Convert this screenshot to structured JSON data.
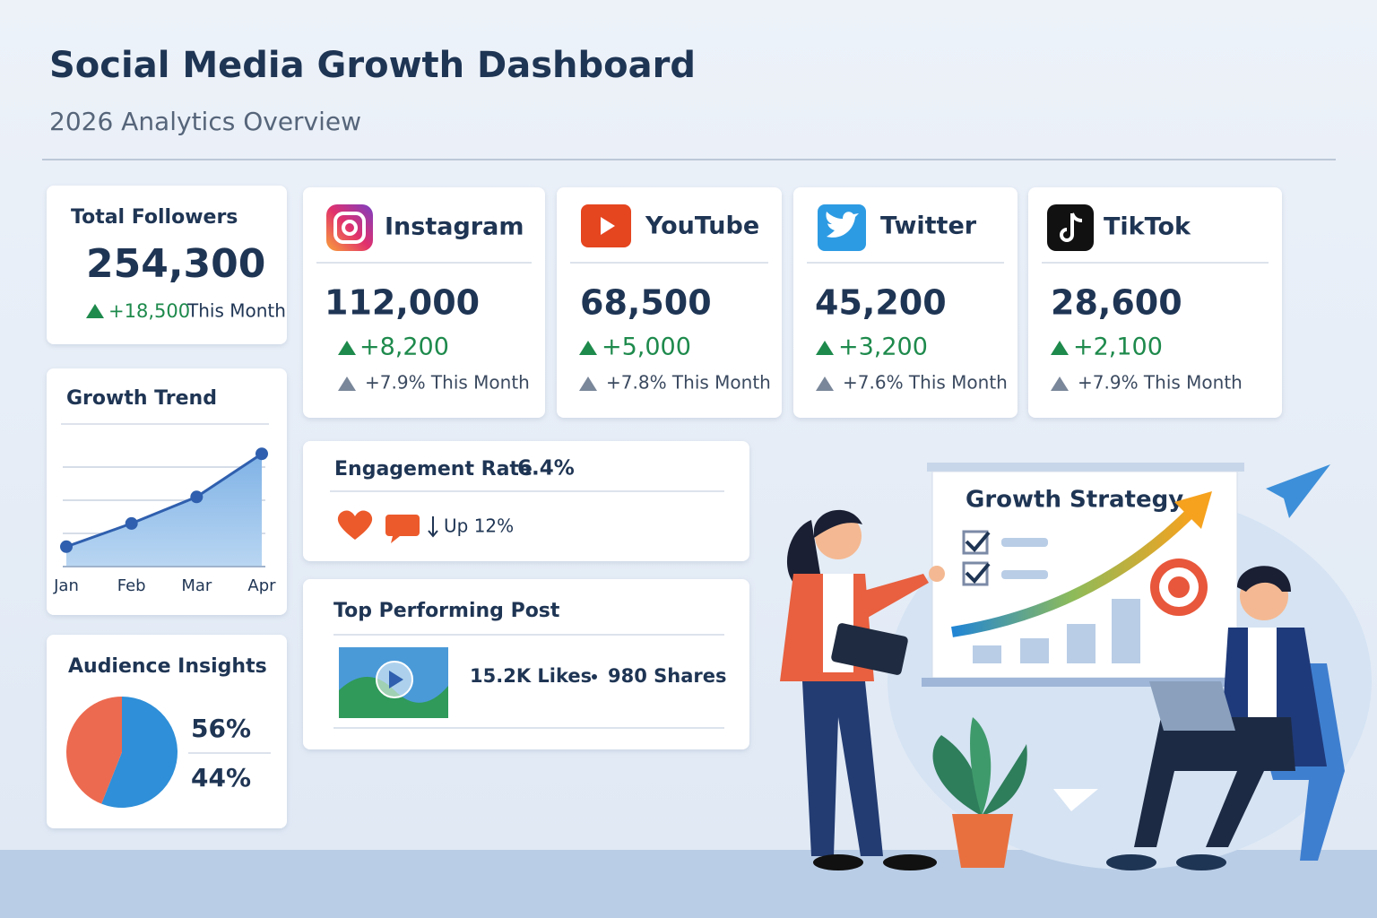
{
  "header": {
    "title": "Social Media Growth Dashboard",
    "subtitle": "2026 Analytics Overview"
  },
  "total_followers": {
    "label": "Total Followers",
    "value": "254,300",
    "change": "+18,500",
    "period": "This Month"
  },
  "platforms": [
    {
      "name": "Instagram",
      "followers": "112,000",
      "change": "+8,200",
      "percent": "+7.9% This Month"
    },
    {
      "name": "YouTube",
      "followers": "68,500",
      "change": "+5,000",
      "percent": "+7.8% This Month"
    },
    {
      "name": "Twitter",
      "followers": "45,200",
      "change": "+3,200",
      "percent": "+7.6% This Month"
    },
    {
      "name": "TikTok",
      "followers": "28,600",
      "change": "+2,100",
      "percent": "+7.9% This Month"
    }
  ],
  "growth_trend": {
    "type": "line",
    "title": "Growth Trend",
    "categories": [
      "Jan",
      "Feb",
      "Mar",
      "Apr"
    ],
    "values": [
      0.6,
      1.3,
      2.1,
      3.4
    ],
    "ylim": [
      0,
      4
    ],
    "yticks": [
      1,
      2,
      3
    ],
    "grid": true,
    "color": "#2f5fae"
  },
  "engagement": {
    "label": "Engagement Rate",
    "value": "6.4%",
    "trend": "Up 12%"
  },
  "top_post": {
    "label": "Top Performing Post",
    "likes": "15.2K Likes",
    "shares": "980 Shares"
  },
  "audience": {
    "type": "pie",
    "title": "Audience Insights",
    "values": [
      56,
      44
    ],
    "value_labels": [
      "56%",
      "44%"
    ],
    "colors": [
      "#2f8fd8",
      "#ec6a50"
    ]
  },
  "illustration": {
    "board_title": "Growth Strategy"
  }
}
